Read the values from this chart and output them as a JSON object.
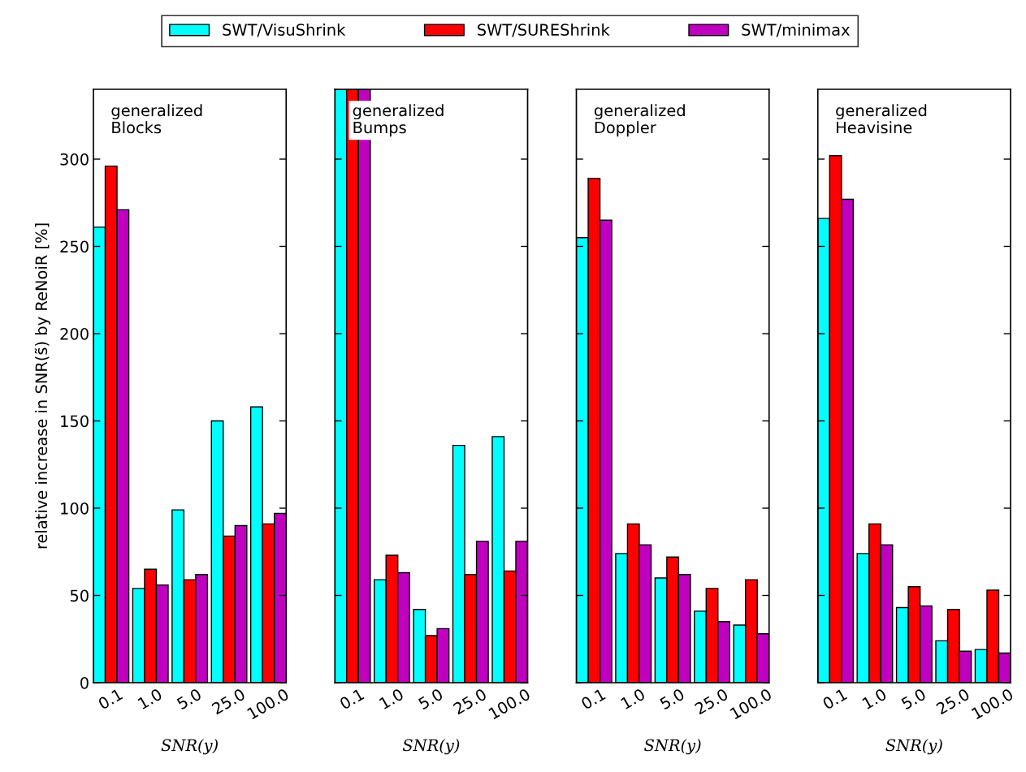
{
  "chart_data": [
    {
      "type": "bar",
      "categories": [
        "0.1",
        "1.0",
        "5.0",
        "25.0",
        "100.0"
      ],
      "series": [
        {
          "name": "SWT/VisuShrink",
          "color": "#00ffff",
          "values": [
            261,
            54,
            99,
            150,
            158
          ]
        },
        {
          "name": "SWT/SUREShrink",
          "color": "#ff0000",
          "values": [
            296,
            65,
            59,
            84,
            91
          ]
        },
        {
          "name": "SWT/minimax",
          "color": "#bf00bf",
          "values": [
            271,
            56,
            62,
            90,
            97
          ]
        }
      ],
      "ylim": [
        0,
        340
      ],
      "yticks": [
        0,
        50,
        100,
        150,
        200,
        250,
        300
      ],
      "xlabel": "SNR(y)",
      "ylabel": "relative increase in SNR(s̃) by ReNoiR [%]",
      "annotations": [
        "generalized\nBlocks"
      ],
      "legend": "top",
      "grid": false
    },
    {
      "type": "bar",
      "categories": [
        "0.1",
        "1.0",
        "5.0",
        "25.0",
        "100.0"
      ],
      "series": [
        {
          "name": "SWT/VisuShrink",
          "color": "#00ffff",
          "values": [
            340,
            59,
            42,
            136,
            141
          ]
        },
        {
          "name": "SWT/SUREShrink",
          "color": "#ff0000",
          "values": [
            340,
            73,
            27,
            62,
            64
          ]
        },
        {
          "name": "SWT/minimax",
          "color": "#bf00bf",
          "values": [
            340,
            63,
            31,
            81,
            81
          ]
        }
      ],
      "ylim": [
        0,
        340
      ],
      "yticks": [
        0,
        50,
        100,
        150,
        200,
        250,
        300
      ],
      "xlabel": "SNR(y)",
      "annotations": [
        "generalized\nBumps"
      ],
      "tick_labels": "x",
      "grid": false
    },
    {
      "type": "bar",
      "categories": [
        "0.1",
        "1.0",
        "5.0",
        "25.0",
        "100.0"
      ],
      "series": [
        {
          "name": "SWT/VisuShrink",
          "color": "#00ffff",
          "values": [
            255,
            74,
            60,
            41,
            33
          ]
        },
        {
          "name": "SWT/SUREShrink",
          "color": "#ff0000",
          "values": [
            289,
            91,
            72,
            54,
            59
          ]
        },
        {
          "name": "SWT/minimax",
          "color": "#bf00bf",
          "values": [
            265,
            79,
            62,
            35,
            28
          ]
        }
      ],
      "ylim": [
        0,
        340
      ],
      "yticks": [
        0,
        50,
        100,
        150,
        200,
        250,
        300
      ],
      "xlabel": "SNR(y)",
      "annotations": [
        "generalized\nDoppler"
      ],
      "tick_labels": "x",
      "grid": false
    },
    {
      "type": "bar",
      "categories": [
        "0.1",
        "1.0",
        "5.0",
        "25.0",
        "100.0"
      ],
      "series": [
        {
          "name": "SWT/VisuShrink",
          "color": "#00ffff",
          "values": [
            266,
            74,
            43,
            24,
            19
          ]
        },
        {
          "name": "SWT/SUREShrink",
          "color": "#ff0000",
          "values": [
            302,
            91,
            55,
            42,
            53
          ]
        },
        {
          "name": "SWT/minimax",
          "color": "#bf00bf",
          "values": [
            277,
            79,
            44,
            18,
            17
          ]
        }
      ],
      "ylim": [
        0,
        340
      ],
      "yticks": [
        0,
        50,
        100,
        150,
        200,
        250,
        300
      ],
      "xlabel": "SNR(y)",
      "annotations": [
        "generalized\nHeavisine"
      ],
      "tick_labels": "x",
      "grid": false
    }
  ]
}
